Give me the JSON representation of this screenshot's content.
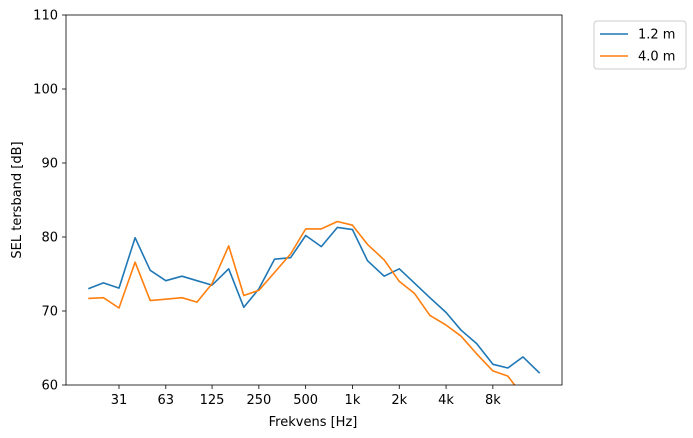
{
  "chart_data": {
    "type": "line",
    "xlabel": "Frekvens [Hz]",
    "ylabel": "SEL tersband [dB]",
    "ylim": [
      60,
      110
    ],
    "yticks": [
      60,
      70,
      80,
      90,
      100,
      110
    ],
    "xscale": "log",
    "xticks": [
      {
        "value": 31.5,
        "label": "31"
      },
      {
        "value": 63,
        "label": "63"
      },
      {
        "value": 125,
        "label": "125"
      },
      {
        "value": 250,
        "label": "250"
      },
      {
        "value": 500,
        "label": "500"
      },
      {
        "value": 1000,
        "label": "1k"
      },
      {
        "value": 2000,
        "label": "2k"
      },
      {
        "value": 4000,
        "label": "4k"
      },
      {
        "value": 8000,
        "label": "8k"
      }
    ],
    "x": [
      20,
      25,
      31.5,
      40,
      50,
      63,
      80,
      100,
      125,
      160,
      200,
      250,
      315,
      400,
      500,
      630,
      800,
      1000,
      1250,
      1600,
      2000,
      2500,
      3150,
      4000,
      5000,
      6300,
      8000,
      10000,
      12500,
      16000
    ],
    "series": [
      {
        "name": "1.2 m",
        "color": "#1f77b4",
        "values": [
          73.0,
          73.8,
          73.1,
          79.9,
          75.5,
          74.1,
          74.7,
          74.1,
          73.5,
          75.7,
          70.5,
          73.0,
          77.0,
          77.2,
          80.2,
          78.7,
          81.3,
          81.0,
          76.8,
          74.7,
          75.7,
          73.8,
          71.8,
          69.8,
          67.4,
          65.6,
          62.8,
          62.3,
          63.8,
          61.6
        ]
      },
      {
        "name": "4.0 m",
        "color": "#ff7f0e",
        "values": [
          71.7,
          71.8,
          70.4,
          76.6,
          71.4,
          71.6,
          71.8,
          71.2,
          73.7,
          78.8,
          72.1,
          72.8,
          75.2,
          77.7,
          81.1,
          81.1,
          82.1,
          81.6,
          79.0,
          76.9,
          74.0,
          72.4,
          69.4,
          68.1,
          66.6,
          64.2,
          61.9,
          61.2,
          58.5,
          55.0
        ]
      }
    ],
    "legend_position": "outside-top-right",
    "grid": false
  }
}
